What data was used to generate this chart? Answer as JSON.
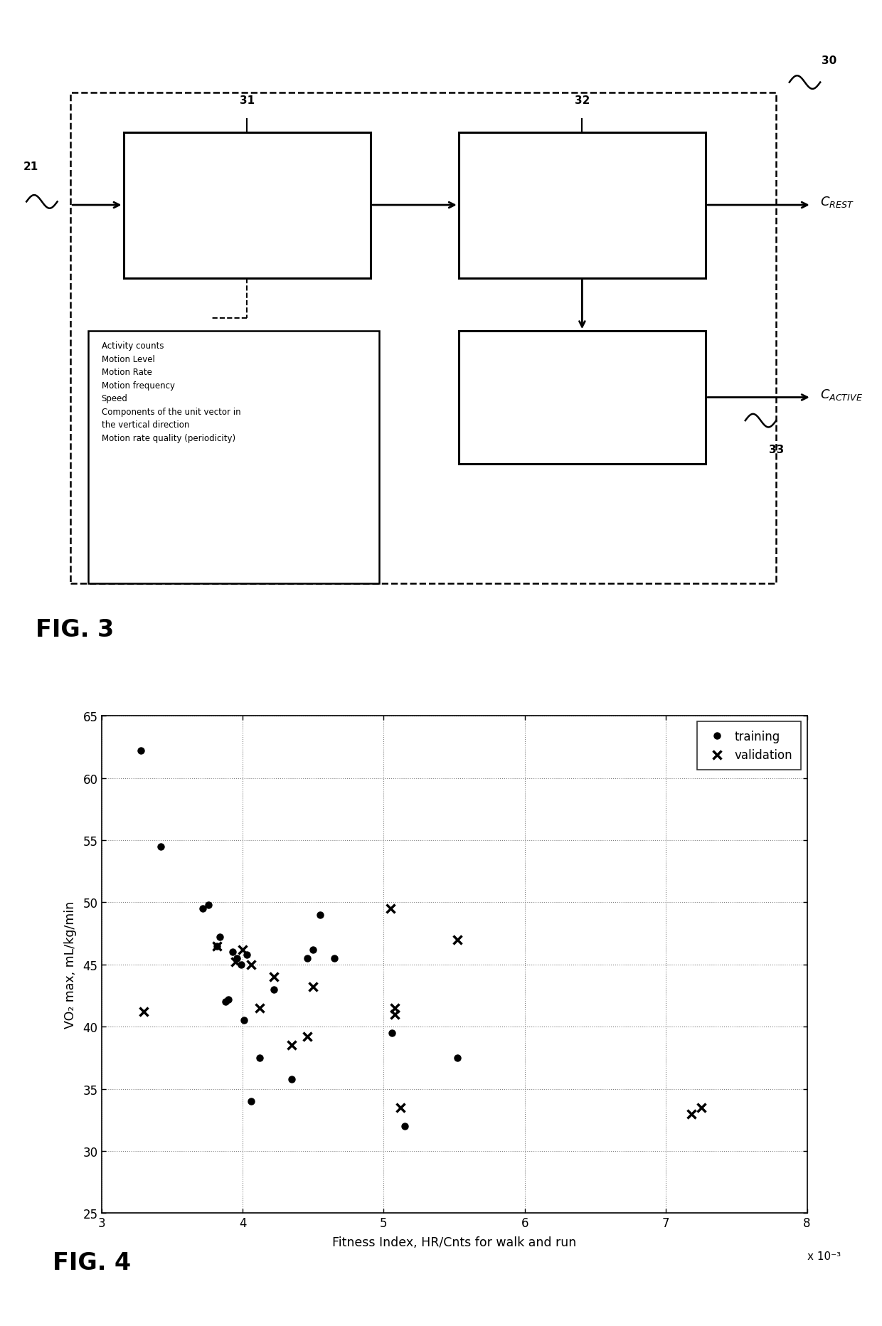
{
  "fig3": {
    "title": "FIG. 3",
    "label_21": "21",
    "label_30": "30",
    "label_31": "31",
    "label_32": "32",
    "label_33": "33",
    "box_text": "Activity counts\nMotion Level\nMotion Rate\nMotion frequency\nSpeed\nComponents of the unit vector in\nthe vertical direction\nMotion rate quality (periodicity)"
  },
  "fig4": {
    "title": "FIG. 4",
    "xlabel": "Fitness Index, HR/Cnts for walk and run",
    "ylabel": "VO₂ max, mL/kg/min",
    "x_scale_label": "x 10⁻³",
    "xlim": [
      3,
      8
    ],
    "ylim": [
      25,
      65
    ],
    "xticks": [
      3,
      4,
      5,
      6,
      7,
      8
    ],
    "yticks": [
      25,
      30,
      35,
      40,
      45,
      50,
      55,
      60,
      65
    ],
    "training_x": [
      3.28,
      3.42,
      3.72,
      3.76,
      3.82,
      3.84,
      3.88,
      3.9,
      3.93,
      3.96,
      3.99,
      4.01,
      4.03,
      4.06,
      4.12,
      4.22,
      4.35,
      4.46,
      4.5,
      4.55,
      4.65,
      5.06,
      5.15,
      5.52
    ],
    "training_y": [
      62.2,
      54.5,
      49.5,
      49.8,
      46.5,
      47.2,
      42.0,
      42.2,
      46.0,
      45.5,
      45.0,
      40.5,
      45.8,
      34.0,
      37.5,
      43.0,
      35.8,
      45.5,
      46.2,
      49.0,
      45.5,
      39.5,
      32.0,
      37.5
    ],
    "validation_x": [
      3.3,
      3.82,
      3.95,
      4.0,
      4.06,
      4.12,
      4.22,
      4.35,
      4.46,
      4.5,
      5.05,
      5.08,
      5.08,
      5.12,
      5.52,
      7.18,
      7.25
    ],
    "validation_y": [
      41.2,
      46.5,
      45.2,
      46.2,
      45.0,
      41.5,
      44.0,
      38.5,
      39.2,
      43.2,
      49.5,
      41.5,
      41.0,
      33.5,
      47.0,
      33.0,
      33.5
    ],
    "legend_training": "training",
    "legend_validation": "validation"
  }
}
